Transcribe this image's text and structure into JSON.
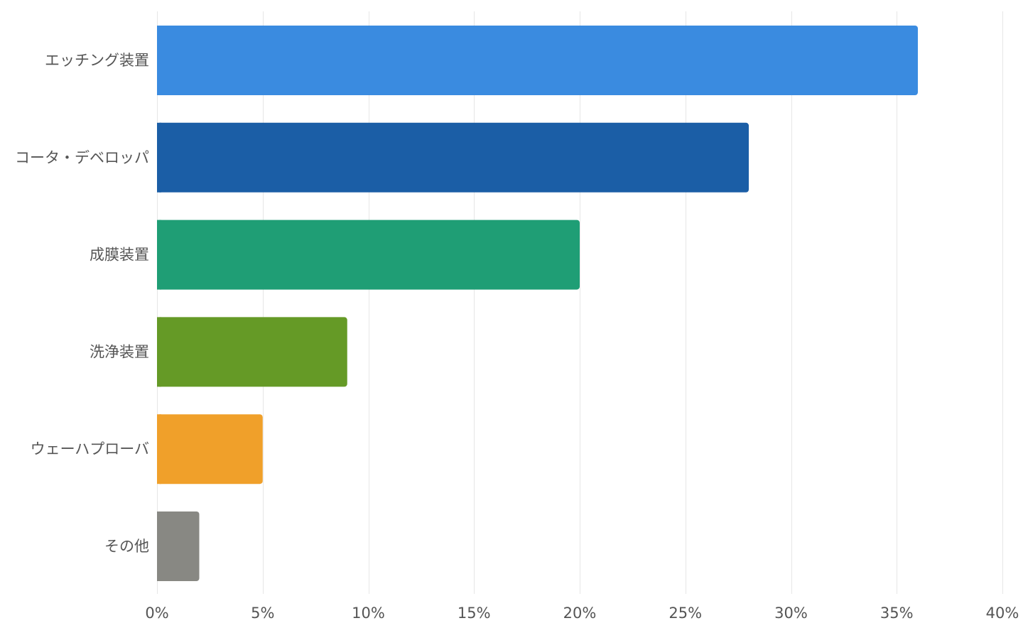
{
  "chart_data": {
    "type": "bar",
    "orientation": "horizontal",
    "categories": [
      "エッチング装置",
      "コータ・デベロッパ",
      "成膜装置",
      "洗浄装置",
      "ウェーハプローバ",
      "その他"
    ],
    "values": [
      36,
      28,
      20,
      9,
      5,
      2
    ],
    "value_unit": "%",
    "xlim": [
      0,
      40
    ],
    "x_ticks": [
      0,
      5,
      10,
      15,
      20,
      25,
      30,
      35,
      40
    ],
    "x_tick_labels": [
      "0%",
      "5%",
      "10%",
      "15%",
      "20%",
      "25%",
      "30%",
      "35%",
      "40%"
    ],
    "bar_colors": [
      "#3a8be0",
      "#1b5ea6",
      "#1f9e75",
      "#659a26",
      "#f0a02a",
      "#888883"
    ],
    "grid": true,
    "legend": "none",
    "title": "",
    "xlabel": "",
    "ylabel": ""
  }
}
